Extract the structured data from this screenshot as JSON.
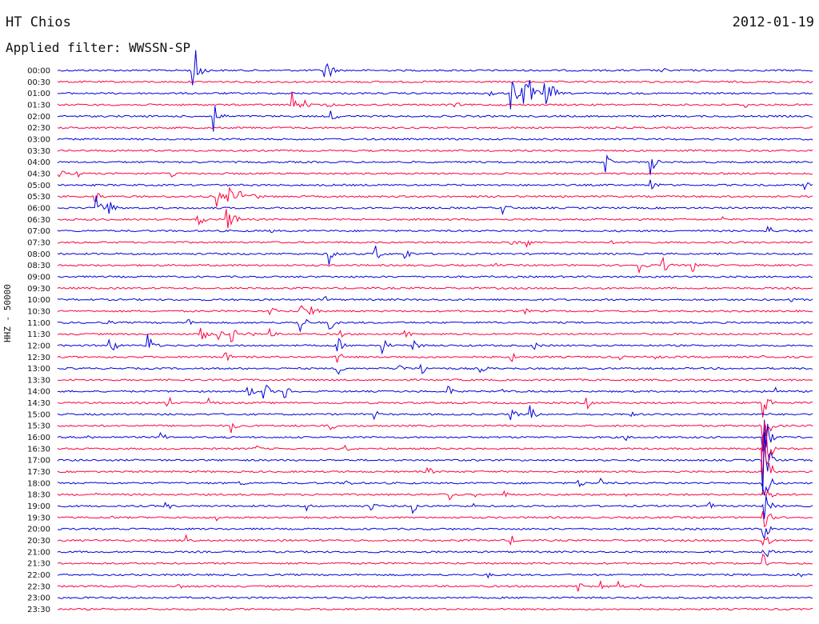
{
  "header": {
    "station": "HT Chios",
    "date": "2012-01-19",
    "filter": "Applied filter: WWSSN-SP"
  },
  "channel": "HHZ - 50000",
  "colors": {
    "odd": "#0000dd",
    "even": "#ff0040"
  },
  "chart_data": {
    "type": "line",
    "grid": false,
    "title": "",
    "xlabel": "",
    "ylabel": "HHZ - 50000",
    "traces": [
      {
        "t": "00:00",
        "e": [
          [
            0.177,
            30
          ],
          [
            0.183,
            26
          ],
          [
            0.354,
            20
          ],
          [
            0.358,
            14
          ],
          [
            0.8,
            5
          ]
        ]
      },
      {
        "t": "00:30",
        "e": []
      },
      {
        "t": "01:00",
        "e": [
          [
            0.57,
            10
          ],
          [
            0.6,
            30
          ],
          [
            0.615,
            32
          ],
          [
            0.626,
            18
          ],
          [
            0.645,
            22
          ],
          [
            0.655,
            12
          ]
        ]
      },
      {
        "t": "01:30",
        "e": [
          [
            0.311,
            18
          ],
          [
            0.324,
            10
          ],
          [
            0.357,
            6
          ],
          [
            0.525,
            6
          ],
          [
            0.91,
            6
          ]
        ]
      },
      {
        "t": "02:00",
        "e": [
          [
            0.209,
            14
          ],
          [
            0.207,
            26
          ],
          [
            0.362,
            10
          ]
        ]
      },
      {
        "t": "02:30",
        "e": []
      },
      {
        "t": "03:00",
        "e": []
      },
      {
        "t": "03:30",
        "e": []
      },
      {
        "t": "04:00",
        "e": [
          [
            0.725,
            14
          ],
          [
            0.78,
            36
          ],
          [
            0.784,
            16
          ]
        ]
      },
      {
        "t": "04:30",
        "e": [
          [
            0.003,
            8
          ],
          [
            0.026,
            6
          ],
          [
            0.148,
            10
          ]
        ]
      },
      {
        "t": "05:00",
        "e": [
          [
            0.785,
            14
          ],
          [
            0.99,
            6
          ]
        ]
      },
      {
        "t": "05:30",
        "e": [
          [
            0.048,
            14
          ],
          [
            0.21,
            16
          ],
          [
            0.226,
            14
          ],
          [
            0.24,
            12
          ],
          [
            0.258,
            10
          ]
        ]
      },
      {
        "t": "06:00",
        "e": [
          [
            0.051,
            16
          ],
          [
            0.066,
            16
          ],
          [
            0.59,
            10
          ]
        ]
      },
      {
        "t": "06:30",
        "e": [
          [
            0.185,
            14
          ],
          [
            0.223,
            18
          ],
          [
            0.232,
            14
          ],
          [
            0.88,
            4
          ]
        ]
      },
      {
        "t": "07:00",
        "e": [
          [
            0.28,
            4
          ],
          [
            0.94,
            10
          ]
        ]
      },
      {
        "t": "07:30",
        "e": [
          [
            0.6,
            8
          ],
          [
            0.62,
            12
          ],
          [
            0.735,
            4
          ]
        ]
      },
      {
        "t": "08:00",
        "e": [
          [
            0.36,
            14
          ],
          [
            0.419,
            16
          ],
          [
            0.46,
            10
          ]
        ]
      },
      {
        "t": "08:30",
        "e": [
          [
            0.58,
            4
          ],
          [
            0.77,
            14
          ],
          [
            0.8,
            16
          ],
          [
            0.84,
            12
          ]
        ]
      },
      {
        "t": "09:00",
        "e": []
      },
      {
        "t": "09:30",
        "e": []
      },
      {
        "t": "10:00",
        "e": [
          [
            0.353,
            8
          ],
          [
            0.97,
            6
          ]
        ]
      },
      {
        "t": "10:30",
        "e": [
          [
            0.28,
            10
          ],
          [
            0.32,
            14
          ],
          [
            0.335,
            12
          ],
          [
            0.62,
            4
          ]
        ]
      },
      {
        "t": "11:00",
        "e": [
          [
            0.067,
            4
          ],
          [
            0.172,
            6
          ],
          [
            0.32,
            20
          ],
          [
            0.36,
            12
          ]
        ]
      },
      {
        "t": "11:30",
        "e": [
          [
            0.19,
            12
          ],
          [
            0.21,
            16
          ],
          [
            0.23,
            12
          ],
          [
            0.25,
            10
          ],
          [
            0.28,
            8
          ],
          [
            0.37,
            10
          ],
          [
            0.46,
            8
          ]
        ]
      },
      {
        "t": "12:00",
        "e": [
          [
            0.069,
            16
          ],
          [
            0.119,
            20
          ],
          [
            0.37,
            14
          ],
          [
            0.43,
            12
          ],
          [
            0.47,
            14
          ],
          [
            0.63,
            8
          ]
        ]
      },
      {
        "t": "12:30",
        "e": [
          [
            0.22,
            12
          ],
          [
            0.37,
            10
          ],
          [
            0.6,
            8
          ],
          [
            0.74,
            8
          ],
          [
            0.79,
            6
          ],
          [
            0.935,
            8
          ]
        ]
      },
      {
        "t": "13:00",
        "e": [
          [
            0.37,
            12
          ],
          [
            0.45,
            14
          ],
          [
            0.48,
            16
          ],
          [
            0.56,
            8
          ]
        ]
      },
      {
        "t": "13:30",
        "e": []
      },
      {
        "t": "14:00",
        "e": [
          [
            0.25,
            14
          ],
          [
            0.272,
            18
          ],
          [
            0.3,
            12
          ],
          [
            0.516,
            10
          ],
          [
            0.588,
            4
          ],
          [
            0.95,
            8
          ]
        ]
      },
      {
        "t": "14:30",
        "e": [
          [
            0.145,
            12
          ],
          [
            0.2,
            8
          ],
          [
            0.7,
            10
          ],
          [
            0.935,
            24
          ]
        ]
      },
      {
        "t": "15:00",
        "e": [
          [
            0.42,
            6
          ],
          [
            0.6,
            12
          ],
          [
            0.625,
            14
          ],
          [
            0.76,
            4
          ]
        ]
      },
      {
        "t": "15:30",
        "e": [
          [
            0.23,
            10
          ],
          [
            0.36,
            10
          ],
          [
            0.935,
            34
          ]
        ]
      },
      {
        "t": "16:00",
        "e": [
          [
            0.04,
            8
          ],
          [
            0.136,
            8
          ],
          [
            0.75,
            8
          ],
          [
            0.935,
            40
          ]
        ]
      },
      {
        "t": "16:30",
        "e": [
          [
            0.26,
            8
          ],
          [
            0.38,
            6
          ],
          [
            0.935,
            48
          ]
        ]
      },
      {
        "t": "17:00",
        "e": [
          [
            0.935,
            48
          ]
        ]
      },
      {
        "t": "17:30",
        "e": [
          [
            0.49,
            8
          ],
          [
            0.935,
            48
          ]
        ]
      },
      {
        "t": "18:00",
        "e": [
          [
            0.24,
            6
          ],
          [
            0.38,
            8
          ],
          [
            0.69,
            8
          ],
          [
            0.72,
            6
          ],
          [
            0.935,
            36
          ]
        ]
      },
      {
        "t": "18:30",
        "e": [
          [
            0.05,
            4
          ],
          [
            0.52,
            8
          ],
          [
            0.55,
            6
          ],
          [
            0.59,
            6
          ],
          [
            0.75,
            4
          ],
          [
            0.935,
            30
          ]
        ]
      },
      {
        "t": "19:00",
        "e": [
          [
            0.143,
            8
          ],
          [
            0.33,
            6
          ],
          [
            0.415,
            8
          ],
          [
            0.47,
            10
          ],
          [
            0.55,
            4
          ],
          [
            0.86,
            10
          ],
          [
            0.935,
            24
          ]
        ]
      },
      {
        "t": "19:30",
        "e": [
          [
            0.07,
            4
          ],
          [
            0.21,
            6
          ],
          [
            0.935,
            20
          ]
        ]
      },
      {
        "t": "20:00",
        "e": [
          [
            0.935,
            18
          ]
        ]
      },
      {
        "t": "20:30",
        "e": [
          [
            0.171,
            10
          ],
          [
            0.6,
            8
          ],
          [
            0.935,
            16
          ]
        ]
      },
      {
        "t": "21:00",
        "e": [
          [
            0.935,
            14
          ]
        ]
      },
      {
        "t": "21:30",
        "e": [
          [
            0.935,
            12
          ]
        ]
      },
      {
        "t": "22:00",
        "e": [
          [
            0.57,
            4
          ],
          [
            0.98,
            6
          ]
        ]
      },
      {
        "t": "22:30",
        "e": [
          [
            0.16,
            4
          ],
          [
            0.69,
            8
          ],
          [
            0.72,
            8
          ],
          [
            0.74,
            10
          ],
          [
            0.77,
            6
          ]
        ]
      },
      {
        "t": "23:00",
        "e": []
      },
      {
        "t": "23:30",
        "e": []
      }
    ]
  }
}
